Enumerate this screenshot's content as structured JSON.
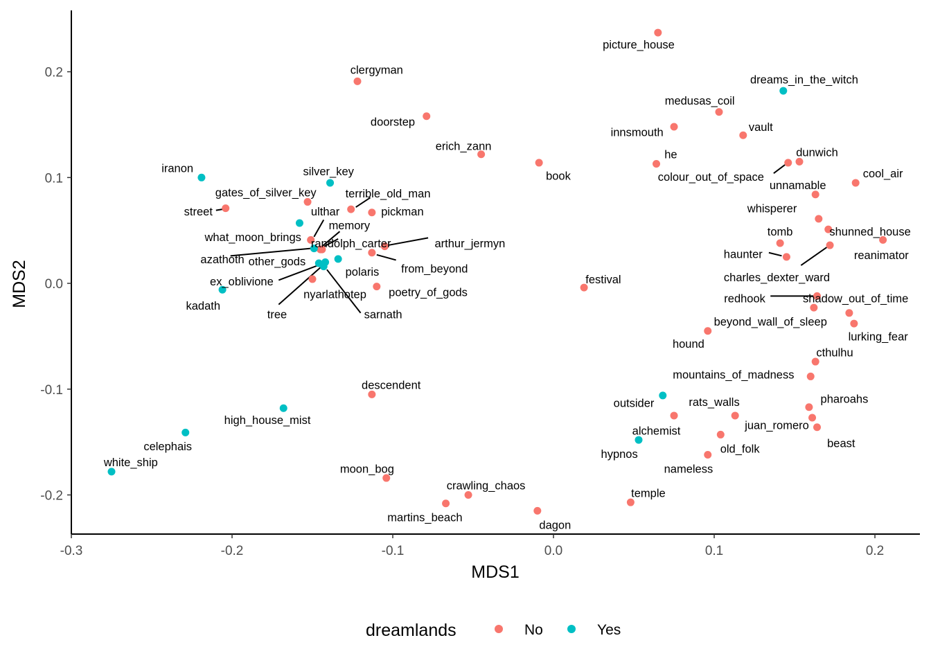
{
  "chart_data": {
    "type": "scatter",
    "xlabel": "MDS1",
    "ylabel": "MDS2",
    "xlim": [
      -0.3,
      0.228
    ],
    "ylim": [
      -0.237,
      0.258
    ],
    "xticks": [
      -0.3,
      -0.2,
      -0.1,
      0.0,
      0.1,
      0.2
    ],
    "xtick_labels": [
      "-0.3",
      "-0.2",
      "-0.1",
      "0.0",
      "0.1",
      "0.2"
    ],
    "yticks": [
      -0.2,
      -0.1,
      0.0,
      0.1,
      0.2
    ],
    "ytick_labels": [
      "-0.2",
      "-0.1",
      "0.0",
      "0.1",
      "0.2"
    ],
    "grid": false,
    "legend": {
      "title": "dreamlands",
      "placement": "bottom",
      "entries": [
        {
          "label": "No",
          "color": "#F8766D"
        },
        {
          "label": "Yes",
          "color": "#00BFC4"
        }
      ]
    },
    "colors": {
      "No": "#F8766D",
      "Yes": "#00BFC4"
    },
    "points": [
      {
        "name": "picture_house",
        "x": 0.065,
        "y": 0.237,
        "group": "No",
        "lx": 0.053,
        "ly": 0.226
      },
      {
        "name": "clergyman",
        "x": -0.122,
        "y": 0.191,
        "group": "No",
        "lx": -0.11,
        "ly": 0.202
      },
      {
        "name": "dreams_in_the_witch",
        "x": 0.143,
        "y": 0.182,
        "group": "Yes",
        "lx": 0.156,
        "ly": 0.193
      },
      {
        "name": "medusas_coil",
        "x": 0.103,
        "y": 0.162,
        "group": "No",
        "lx": 0.091,
        "ly": 0.173
      },
      {
        "name": "doorstep",
        "x": -0.079,
        "y": 0.158,
        "group": "No",
        "lx": -0.1,
        "ly": 0.153
      },
      {
        "name": "innsmouth",
        "x": 0.075,
        "y": 0.148,
        "group": "No",
        "lx": 0.052,
        "ly": 0.143
      },
      {
        "name": "vault",
        "x": 0.118,
        "y": 0.14,
        "group": "No",
        "lx": 0.129,
        "ly": 0.148
      },
      {
        "name": "erich_zann",
        "x": -0.045,
        "y": 0.122,
        "group": "No",
        "lx": -0.056,
        "ly": 0.13
      },
      {
        "name": "book",
        "x": -0.009,
        "y": 0.114,
        "group": "No",
        "lx": 0.003,
        "ly": 0.102
      },
      {
        "name": "he",
        "x": 0.064,
        "y": 0.113,
        "group": "No",
        "lx": 0.073,
        "ly": 0.122
      },
      {
        "name": "dunwich",
        "x": 0.153,
        "y": 0.115,
        "group": "No",
        "lx": 0.164,
        "ly": 0.124
      },
      {
        "name": "colour_out_of_space",
        "x": 0.146,
        "y": 0.114,
        "group": "No",
        "lx": 0.098,
        "ly": 0.101,
        "seg": [
          0.137,
          0.104,
          0.144,
          0.112
        ]
      },
      {
        "name": "cool_air",
        "x": 0.188,
        "y": 0.095,
        "group": "No",
        "lx": 0.205,
        "ly": 0.104
      },
      {
        "name": "unnamable",
        "x": 0.163,
        "y": 0.084,
        "group": "No",
        "lx": 0.152,
        "ly": 0.093
      },
      {
        "name": "iranon",
        "x": -0.219,
        "y": 0.1,
        "group": "Yes",
        "lx": -0.234,
        "ly": 0.109
      },
      {
        "name": "silver_key",
        "x": -0.139,
        "y": 0.095,
        "group": "Yes",
        "lx": -0.14,
        "ly": 0.106
      },
      {
        "name": "gates_of_silver_key",
        "x": -0.153,
        "y": 0.077,
        "group": "No",
        "lx": -0.179,
        "ly": 0.086
      },
      {
        "name": "terrible_old_man",
        "x": -0.126,
        "y": 0.07,
        "group": "No",
        "lx": -0.103,
        "ly": 0.085,
        "seg": [
          -0.123,
          0.072,
          -0.114,
          0.081
        ]
      },
      {
        "name": "pickman",
        "x": -0.113,
        "y": 0.067,
        "group": "No",
        "lx": -0.094,
        "ly": 0.068
      },
      {
        "name": "street",
        "x": -0.204,
        "y": 0.071,
        "group": "No",
        "lx": -0.221,
        "ly": 0.068,
        "seg": [
          -0.21,
          0.069,
          -0.206,
          0.07
        ]
      },
      {
        "name": "ulthar",
        "x": -0.151,
        "y": 0.041,
        "group": "No",
        "lx": -0.142,
        "ly": 0.068,
        "seg": [
          -0.149,
          0.044,
          -0.143,
          0.06
        ]
      },
      {
        "name": "whisperer",
        "x": 0.165,
        "y": 0.061,
        "group": "No",
        "lx": 0.136,
        "ly": 0.071
      },
      {
        "name": "what_moon_brings",
        "x": -0.158,
        "y": 0.057,
        "group": "Yes",
        "lx": -0.187,
        "ly": 0.044
      },
      {
        "name": "memory",
        "x": -0.144,
        "y": 0.032,
        "group": "No",
        "lx": -0.127,
        "ly": 0.055,
        "seg": [
          -0.144,
          0.035,
          -0.133,
          0.049
        ]
      },
      {
        "name": "tomb",
        "x": 0.141,
        "y": 0.038,
        "group": "No",
        "lx": 0.141,
        "ly": 0.049
      },
      {
        "name": "shunned_house",
        "x": 0.171,
        "y": 0.051,
        "group": "No",
        "lx": 0.197,
        "ly": 0.049
      },
      {
        "name": "reanimator",
        "x": 0.205,
        "y": 0.041,
        "group": "No",
        "lx": 0.204,
        "ly": 0.027
      },
      {
        "name": "randolph_carter",
        "x": -0.145,
        "y": 0.032,
        "group": "No",
        "lx": -0.126,
        "ly": 0.038,
        "seg": [
          -0.145,
          0.033,
          -0.134,
          0.042
        ]
      },
      {
        "name": "arthur_jermyn",
        "x": -0.105,
        "y": 0.035,
        "group": "No",
        "lx": -0.052,
        "ly": 0.038,
        "seg": [
          -0.103,
          0.036,
          -0.078,
          0.043
        ]
      },
      {
        "name": "azathoth",
        "x": -0.149,
        "y": 0.033,
        "group": "Yes",
        "lx": -0.206,
        "ly": 0.023,
        "seg": [
          -0.201,
          0.026,
          -0.151,
          0.033
        ]
      },
      {
        "name": "haunter",
        "x": 0.145,
        "y": 0.025,
        "group": "No",
        "lx": 0.118,
        "ly": 0.028,
        "seg": [
          0.134,
          0.029,
          0.142,
          0.026
        ]
      },
      {
        "name": "charles_dexter_ward",
        "x": 0.172,
        "y": 0.036,
        "group": "No",
        "lx": 0.139,
        "ly": 0.006,
        "seg": [
          0.154,
          0.017,
          0.17,
          0.034
        ]
      },
      {
        "name": "other_gods",
        "x": -0.146,
        "y": 0.019,
        "group": "Yes",
        "lx": -0.172,
        "ly": 0.021
      },
      {
        "name": "from_beyond",
        "x": -0.113,
        "y": 0.029,
        "group": "No",
        "lx": -0.074,
        "ly": 0.014,
        "seg": [
          -0.11,
          0.027,
          -0.098,
          0.022
        ]
      },
      {
        "name": "polaris",
        "x": -0.134,
        "y": 0.023,
        "group": "Yes",
        "lx": -0.119,
        "ly": 0.011
      },
      {
        "name": "ex_oblivione",
        "x": -0.142,
        "y": 0.02,
        "group": "Yes",
        "lx": -0.194,
        "ly": 0.002,
        "seg": [
          -0.171,
          0.003,
          -0.143,
          0.019
        ]
      },
      {
        "name": "festival",
        "x": 0.019,
        "y": -0.004,
        "group": "No",
        "lx": 0.031,
        "ly": 0.004
      },
      {
        "name": "nyarlathotep",
        "x": -0.15,
        "y": 0.004,
        "group": "No",
        "lx": -0.136,
        "ly": -0.01
      },
      {
        "name": "poetry_of_gods",
        "x": -0.11,
        "y": -0.003,
        "group": "No",
        "lx": -0.078,
        "ly": -0.008
      },
      {
        "name": "kadath",
        "x": -0.206,
        "y": -0.006,
        "group": "Yes",
        "lx": -0.218,
        "ly": -0.021
      },
      {
        "name": "redhook",
        "x": 0.164,
        "y": -0.012,
        "group": "No",
        "lx": 0.119,
        "ly": -0.014,
        "seg": [
          0.135,
          -0.012,
          0.162,
          -0.012
        ]
      },
      {
        "name": "shadow_out_of_time",
        "x": 0.162,
        "y": -0.023,
        "group": "No",
        "lx": 0.188,
        "ly": -0.014
      },
      {
        "name": "tree",
        "x": -0.143,
        "y": 0.018,
        "group": "Yes",
        "lx": -0.172,
        "ly": -0.029,
        "seg": [
          -0.171,
          -0.02,
          -0.145,
          0.015
        ]
      },
      {
        "name": "sarnath",
        "x": -0.143,
        "y": 0.016,
        "group": "Yes",
        "lx": -0.106,
        "ly": -0.029,
        "seg": [
          -0.12,
          -0.028,
          -0.141,
          0.013
        ]
      },
      {
        "name": "beyond_wall_of_sleep",
        "x": 0.184,
        "y": -0.028,
        "group": "No",
        "lx": 0.135,
        "ly": -0.036
      },
      {
        "name": "hound",
        "x": 0.096,
        "y": -0.045,
        "group": "No",
        "lx": 0.084,
        "ly": -0.057
      },
      {
        "name": "lurking_fear",
        "x": 0.187,
        "y": -0.038,
        "group": "No",
        "lx": 0.202,
        "ly": -0.05
      },
      {
        "name": "cthulhu",
        "x": 0.163,
        "y": -0.074,
        "group": "No",
        "lx": 0.175,
        "ly": -0.065
      },
      {
        "name": "mountains_of_madness",
        "x": 0.16,
        "y": -0.088,
        "group": "No",
        "lx": 0.112,
        "ly": -0.086
      },
      {
        "name": "descendent",
        "x": -0.113,
        "y": -0.105,
        "group": "No",
        "lx": -0.101,
        "ly": -0.096
      },
      {
        "name": "outsider",
        "x": 0.068,
        "y": -0.106,
        "group": "Yes",
        "lx": 0.05,
        "ly": -0.113
      },
      {
        "name": "rats_walls",
        "x": 0.075,
        "y": -0.125,
        "group": "No",
        "lx": 0.1,
        "ly": -0.112
      },
      {
        "name": "pharoahs",
        "x": 0.159,
        "y": -0.117,
        "group": "No",
        "lx": 0.181,
        "ly": -0.109
      },
      {
        "name": "juan_romero",
        "x": 0.161,
        "y": -0.127,
        "group": "No",
        "lx": 0.139,
        "ly": -0.134
      },
      {
        "name": "beast",
        "x": 0.164,
        "y": -0.136,
        "group": "No",
        "lx": 0.179,
        "ly": -0.151
      },
      {
        "name": "high_house_mist",
        "x": -0.168,
        "y": -0.118,
        "group": "Yes",
        "lx": -0.178,
        "ly": -0.129
      },
      {
        "name": "alchemist",
        "x": 0.113,
        "y": -0.125,
        "group": "No",
        "lx": 0.064,
        "ly": -0.139
      },
      {
        "name": "hypnos",
        "x": 0.053,
        "y": -0.148,
        "group": "Yes",
        "lx": 0.041,
        "ly": -0.161
      },
      {
        "name": "old_folk",
        "x": 0.104,
        "y": -0.143,
        "group": "No",
        "lx": 0.116,
        "ly": -0.156
      },
      {
        "name": "celephais",
        "x": -0.229,
        "y": -0.141,
        "group": "Yes",
        "lx": -0.24,
        "ly": -0.154
      },
      {
        "name": "nameless",
        "x": 0.096,
        "y": -0.162,
        "group": "No",
        "lx": 0.084,
        "ly": -0.175
      },
      {
        "name": "white_ship",
        "x": -0.275,
        "y": -0.178,
        "group": "Yes",
        "lx": -0.263,
        "ly": -0.169
      },
      {
        "name": "moon_bog",
        "x": -0.104,
        "y": -0.184,
        "group": "No",
        "lx": -0.116,
        "ly": -0.175
      },
      {
        "name": "crawling_chaos",
        "x": -0.053,
        "y": -0.2,
        "group": "No",
        "lx": -0.042,
        "ly": -0.191
      },
      {
        "name": "temple",
        "x": 0.048,
        "y": -0.207,
        "group": "No",
        "lx": 0.059,
        "ly": -0.198
      },
      {
        "name": "martins_beach",
        "x": -0.067,
        "y": -0.208,
        "group": "No",
        "lx": -0.08,
        "ly": -0.221
      },
      {
        "name": "dagon",
        "x": -0.01,
        "y": -0.215,
        "group": "No",
        "lx": 0.001,
        "ly": -0.228
      }
    ]
  }
}
